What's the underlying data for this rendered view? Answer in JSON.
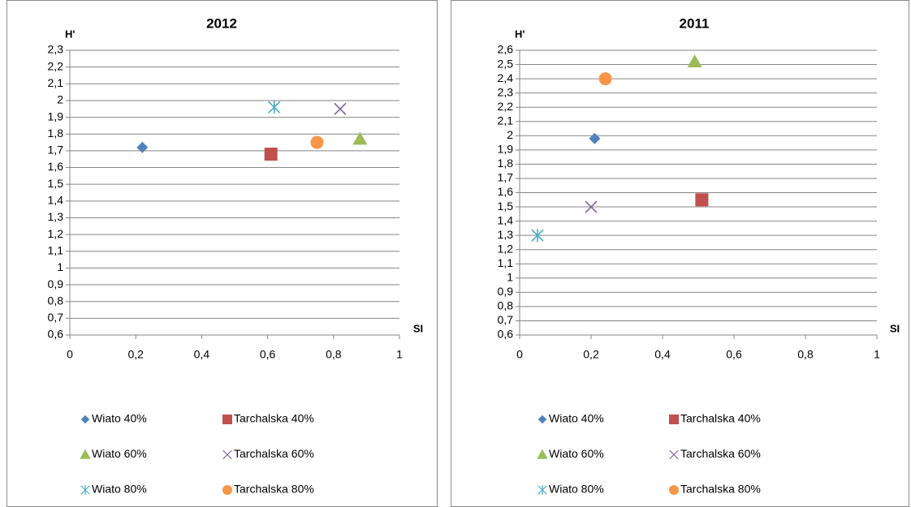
{
  "chart_data": [
    {
      "type": "scatter",
      "title": "2012",
      "x_label": "SI",
      "y_label": "H'",
      "xlim": [
        0,
        1
      ],
      "xticks": [
        0,
        {
          "value": 0.2,
          "label": "0,2"
        },
        {
          "value": 0.4,
          "label": "0,4"
        },
        {
          "value": 0.6,
          "label": "0,6"
        },
        {
          "value": 0.8,
          "label": "0,8"
        },
        1
      ],
      "ylim": [
        0.6,
        2.3
      ],
      "yticks": [
        {
          "value": 0.6,
          "label": "0,6"
        },
        {
          "value": 0.7,
          "label": "0,7"
        },
        {
          "value": 0.8,
          "label": "0,8"
        },
        {
          "value": 0.9,
          "label": "0,9"
        },
        1,
        {
          "value": 1.1,
          "label": "1,1"
        },
        {
          "value": 1.2,
          "label": "1,2"
        },
        {
          "value": 1.3,
          "label": "1,3"
        },
        {
          "value": 1.4,
          "label": "1,4"
        },
        {
          "value": 1.5,
          "label": "1,5"
        },
        {
          "value": 1.6,
          "label": "1,6"
        },
        {
          "value": 1.7,
          "label": "1,7"
        },
        {
          "value": 1.8,
          "label": "1,8"
        },
        {
          "value": 1.9,
          "label": "1,9"
        },
        2,
        {
          "value": 2.1,
          "label": "2,1"
        },
        {
          "value": 2.2,
          "label": "2,2"
        },
        {
          "value": 2.3,
          "label": "2,3"
        }
      ],
      "grid": true,
      "series": [
        {
          "name": "Wiato 40%",
          "color": "#4f81bd",
          "marker": "diamond",
          "x": [
            0.22
          ],
          "values": [
            1.72
          ]
        },
        {
          "name": "Tarchalska 40%",
          "color": "#c0504d",
          "marker": "square",
          "x": [
            0.61
          ],
          "values": [
            1.68
          ]
        },
        {
          "name": "Wiato 60%",
          "color": "#9bbb59",
          "marker": "triangle",
          "x": [
            0.88
          ],
          "values": [
            1.77
          ]
        },
        {
          "name": "Tarchalska 60%",
          "color": "#8064a2",
          "marker": "x",
          "x": [
            0.82
          ],
          "values": [
            1.95
          ]
        },
        {
          "name": "Wiato 80%",
          "color": "#4bacc6",
          "marker": "star",
          "x": [
            0.62
          ],
          "values": [
            1.96
          ]
        },
        {
          "name": "Tarchalska 80%",
          "color": "#f79646",
          "marker": "circle",
          "x": [
            0.75
          ],
          "values": [
            1.75
          ]
        }
      ]
    },
    {
      "type": "scatter",
      "title": "2011",
      "x_label": "SI",
      "y_label": "H'",
      "xlim": [
        0,
        1
      ],
      "xticks": [
        0,
        {
          "value": 0.2,
          "label": "0,2"
        },
        {
          "value": 0.4,
          "label": "0,4"
        },
        {
          "value": 0.6,
          "label": "0,6"
        },
        {
          "value": 0.8,
          "label": "0,8"
        },
        1
      ],
      "ylim": [
        0.6,
        2.6
      ],
      "yticks": [
        {
          "value": 0.6,
          "label": "0,6"
        },
        {
          "value": 0.7,
          "label": "0,7"
        },
        {
          "value": 0.8,
          "label": "0,8"
        },
        {
          "value": 0.9,
          "label": "0,9"
        },
        1,
        {
          "value": 1.1,
          "label": "1,1"
        },
        {
          "value": 1.2,
          "label": "1,2"
        },
        {
          "value": 1.3,
          "label": "1,3"
        },
        {
          "value": 1.4,
          "label": "1,4"
        },
        {
          "value": 1.5,
          "label": "1,5"
        },
        {
          "value": 1.6,
          "label": "1,6"
        },
        {
          "value": 1.7,
          "label": "1,7"
        },
        {
          "value": 1.8,
          "label": "1,8"
        },
        {
          "value": 1.9,
          "label": "1,9"
        },
        2,
        {
          "value": 2.1,
          "label": "2,1"
        },
        {
          "value": 2.2,
          "label": "2,2"
        },
        {
          "value": 2.3,
          "label": "2,3"
        },
        {
          "value": 2.4,
          "label": "2,4"
        },
        {
          "value": 2.5,
          "label": "2,5"
        },
        {
          "value": 2.6,
          "label": "2,6"
        }
      ],
      "grid": true,
      "series": [
        {
          "name": "Wiato 40%",
          "color": "#4f81bd",
          "marker": "diamond",
          "x": [
            0.21
          ],
          "values": [
            1.98
          ]
        },
        {
          "name": "Tarchalska 40%",
          "color": "#c0504d",
          "marker": "square",
          "x": [
            0.51
          ],
          "values": [
            1.55
          ]
        },
        {
          "name": "Wiato 60%",
          "color": "#9bbb59",
          "marker": "triangle",
          "x": [
            0.49
          ],
          "values": [
            2.52
          ]
        },
        {
          "name": "Tarchalska 60%",
          "color": "#8064a2",
          "marker": "x",
          "x": [
            0.2
          ],
          "values": [
            1.5
          ]
        },
        {
          "name": "Wiato 80%",
          "color": "#4bacc6",
          "marker": "star",
          "x": [
            0.05
          ],
          "values": [
            1.3
          ]
        },
        {
          "name": "Tarchalska 80%",
          "color": "#f79646",
          "marker": "circle",
          "x": [
            0.24
          ],
          "values": [
            2.4
          ]
        }
      ]
    }
  ]
}
